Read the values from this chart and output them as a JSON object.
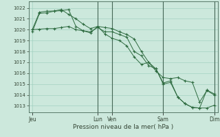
{
  "background_color": "#cce8dc",
  "grid_color": "#99ccbb",
  "line_color": "#2d6a3f",
  "marker_color": "#2d6a3f",
  "xlabel": "Pression niveau de la mer( hPa )",
  "yticks": [
    1013,
    1014,
    1015,
    1016,
    1017,
    1018,
    1019,
    1020,
    1021,
    1022
  ],
  "ylim": [
    1012.4,
    1022.6
  ],
  "xtick_labels": [
    "Jeu",
    "Lun",
    "Ven",
    "Sam",
    "Dim"
  ],
  "xtick_positions": [
    0,
    9,
    11,
    18,
    25
  ],
  "xlim": [
    -0.5,
    25.5
  ],
  "vline_positions": [
    9,
    11,
    18,
    25
  ],
  "series": [
    [
      1019.8,
      1021.5,
      1021.55,
      1021.7,
      1021.75,
      1021.85,
      1020.3,
      1019.9,
      1019.7,
      1020.3,
      1019.6,
      1019.2,
      1019.0,
      1018.5,
      1017.5,
      1016.8,
      1017.0,
      1016.2,
      1015.6,
      1015.5,
      1015.6,
      1015.3,
      1015.15,
      1013.35,
      1014.4,
      1014.0
    ],
    [
      1020.0,
      1020.05,
      1020.1,
      1020.1,
      1020.2,
      1020.3,
      1020.0,
      1019.9,
      1019.8,
      1020.2,
      1019.8,
      1019.8,
      1019.55,
      1019.3,
      1018.0,
      1017.6,
      1016.7,
      1016.4,
      1015.0,
      1015.15,
      1013.8,
      1013.2,
      1012.85,
      1012.8,
      1012.8,
      1013.05
    ],
    [
      1020.0,
      1021.6,
      1021.7,
      1021.72,
      1021.85,
      1021.4,
      1021.0,
      1020.5,
      1020.1,
      1020.3,
      1020.2,
      1020.1,
      1019.8,
      1019.55,
      1019.15,
      1018.0,
      1017.0,
      1016.4,
      1015.1,
      1015.3,
      1013.8,
      1013.2,
      1012.85,
      1012.8,
      1014.45,
      1014.1
    ]
  ],
  "n_points": 26,
  "figsize": [
    3.2,
    2.0
  ],
  "dpi": 100
}
